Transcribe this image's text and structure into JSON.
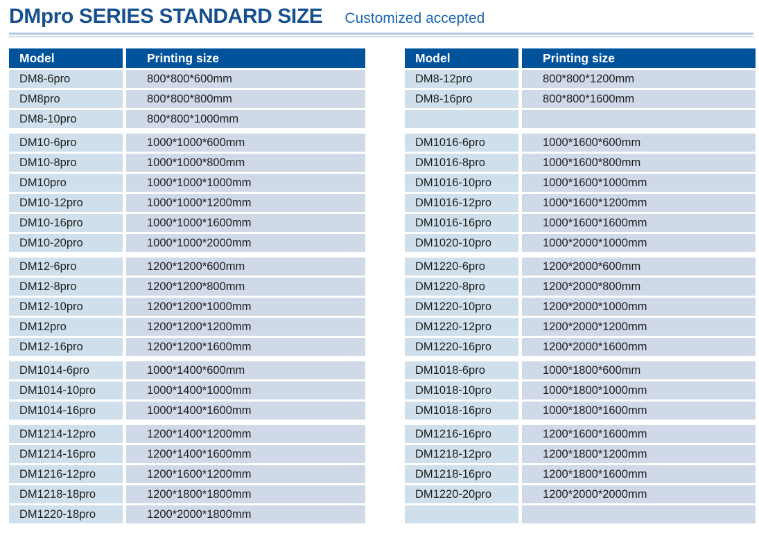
{
  "header": {
    "title": "DMpro SERIES STANDARD SIZE",
    "subtitle": "Customized accepted"
  },
  "colors": {
    "title_text": "#17508f",
    "subtitle_text": "#1c67b0",
    "table_header_bg": "#00529b",
    "table_header_text": "#ffffff",
    "model_cell_bg": "#cfe0ec",
    "size_cell_bg": "#d0d9e8",
    "divider_top": "#b2c8df",
    "divider_bottom": "#cfdeee"
  },
  "tables": [
    {
      "name": "left",
      "columns": [
        "Model",
        "Printing size"
      ],
      "groups": [
        [
          [
            "DM8-6pro",
            "800*800*600mm"
          ],
          [
            "DM8pro",
            "800*800*800mm"
          ],
          [
            "DM8-10pro",
            "800*800*1000mm"
          ]
        ],
        [
          [
            "DM10-6pro",
            "1000*1000*600mm"
          ],
          [
            "DM10-8pro",
            "1000*1000*800mm"
          ],
          [
            "DM10pro",
            "1000*1000*1000mm"
          ],
          [
            "DM10-12pro",
            "1000*1000*1200mm"
          ],
          [
            "DM10-16pro",
            "1000*1000*1600mm"
          ],
          [
            "DM10-20pro",
            "1000*1000*2000mm"
          ]
        ],
        [
          [
            "DM12-6pro",
            "1200*1200*600mm"
          ],
          [
            "DM12-8pro",
            "1200*1200*800mm"
          ],
          [
            "DM12-10pro",
            "1200*1200*1000mm"
          ],
          [
            "DM12pro",
            "1200*1200*1200mm"
          ],
          [
            "DM12-16pro",
            "1200*1200*1600mm"
          ]
        ],
        [
          [
            "DM1014-6pro",
            "1000*1400*600mm"
          ],
          [
            "DM1014-10pro",
            "1000*1400*1000mm"
          ],
          [
            "DM1014-16pro",
            "1000*1400*1600mm"
          ]
        ],
        [
          [
            "DM1214-12pro",
            "1200*1400*1200mm"
          ],
          [
            "DM1214-16pro",
            "1200*1400*1600mm"
          ],
          [
            "DM1216-12pro",
            "1200*1600*1200mm"
          ],
          [
            "DM1218-18pro",
            "1200*1800*1800mm"
          ],
          [
            "DM1220-18pro",
            "1200*2000*1800mm"
          ]
        ]
      ]
    },
    {
      "name": "right",
      "columns": [
        "Model",
        "Printing size"
      ],
      "groups": [
        [
          [
            "DM8-12pro",
            "800*800*1200mm"
          ],
          [
            "DM8-16pro",
            "800*800*1600mm"
          ],
          [
            "",
            ""
          ]
        ],
        [
          [
            "DM1016-6pro",
            "1000*1600*600mm"
          ],
          [
            "DM1016-8pro",
            "1000*1600*800mm"
          ],
          [
            "DM1016-10pro",
            "1000*1600*1000mm"
          ],
          [
            "DM1016-12pro",
            "1000*1600*1200mm"
          ],
          [
            "DM1016-16pro",
            "1000*1600*1600mm"
          ],
          [
            "DM1020-10pro",
            "1000*2000*1000mm"
          ]
        ],
        [
          [
            "DM1220-6pro",
            "1200*2000*600mm"
          ],
          [
            "DM1220-8pro",
            "1200*2000*800mm"
          ],
          [
            "DM1220-10pro",
            "1200*2000*1000mm"
          ],
          [
            "DM1220-12pro",
            "1200*2000*1200mm"
          ],
          [
            "DM1220-16pro",
            "1200*2000*1600mm"
          ]
        ],
        [
          [
            "DM1018-6pro",
            "1000*1800*600mm"
          ],
          [
            "DM1018-10pro",
            "1000*1800*1000mm"
          ],
          [
            "DM1018-16pro",
            "1000*1800*1600mm"
          ]
        ],
        [
          [
            "DM1216-16pro",
            "1200*1600*1600mm"
          ],
          [
            "DM1218-12pro",
            "1200*1800*1200mm"
          ],
          [
            "DM1218-16pro",
            "1200*1800*1600mm"
          ],
          [
            "DM1220-20pro",
            "1200*2000*2000mm"
          ],
          [
            "",
            ""
          ]
        ]
      ]
    }
  ]
}
